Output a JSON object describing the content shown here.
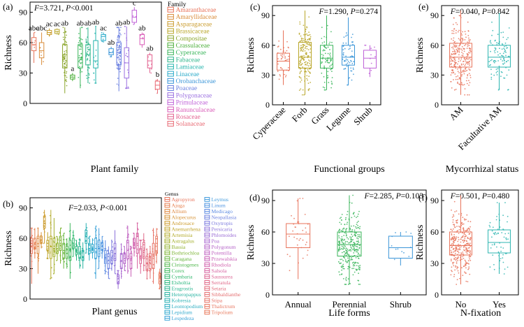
{
  "chart_data": [
    {
      "id": "a",
      "panel_label": "(a)",
      "type": "box",
      "stat_text": {
        "f": "F",
        "f_val": "=3.721, ",
        "p": "P",
        "p_val": "<0.001"
      },
      "ylabel": "Richness",
      "xlabel": "Plant family",
      "ylim": [
        0,
        100
      ],
      "yticks": [
        0,
        30,
        60,
        90
      ],
      "legend_title": "Family",
      "categories": [
        "Amaranthaceae",
        "Amaryllidaceae",
        "Asparagaceae",
        "Brassicaceae",
        "Compositae",
        "Crassulaceae",
        "Cyperaceae",
        "Fabaceae",
        "Lamiaceae",
        "Linaceae",
        "Orobanchaceae",
        "Poaceae",
        "Polygonaceae",
        "Primulaceae",
        "Ranunculaceae",
        "Rosaceae",
        "Solanaceae"
      ],
      "colors": [
        "#e8735a",
        "#d98c3a",
        "#c99a2a",
        "#b8a527",
        "#8aa52a",
        "#4caf3a",
        "#3ab55a",
        "#2cb58a",
        "#25b4ad",
        "#27a9c8",
        "#3a95d8",
        "#6a7fe0",
        "#9a6fe0",
        "#c063d8",
        "#d95cb8",
        "#e2608e",
        "#e86a74"
      ],
      "boxes": [
        {
          "q1": 52,
          "med": 58,
          "q3": 65,
          "lo": 40,
          "hi": 70,
          "n": 6
        },
        {
          "q1": 45,
          "med": 52,
          "q3": 60,
          "lo": 38,
          "hi": 70,
          "n": 5
        },
        {
          "q1": 68,
          "med": 70,
          "q3": 72,
          "lo": 66,
          "hi": 74,
          "n": 2
        },
        {
          "q1": 69,
          "med": 71,
          "q3": 73,
          "lo": 68,
          "hi": 74,
          "n": 2
        },
        {
          "q1": 35,
          "med": 48,
          "q3": 58,
          "lo": 10,
          "hi": 75,
          "n": 60
        },
        {
          "q1": 24,
          "med": 26,
          "q3": 28,
          "lo": 22,
          "hi": 30,
          "n": 3
        },
        {
          "q1": 35,
          "med": 45,
          "q3": 58,
          "lo": 15,
          "hi": 75,
          "n": 40
        },
        {
          "q1": 38,
          "med": 48,
          "q3": 58,
          "lo": 20,
          "hi": 75,
          "n": 40
        },
        {
          "q1": 35,
          "med": 42,
          "q3": 62,
          "lo": 20,
          "hi": 76,
          "n": 12
        },
        {
          "q1": 62,
          "med": 66,
          "q3": 68,
          "lo": 60,
          "hi": 70,
          "n": 4
        },
        {
          "q1": 48,
          "med": 50,
          "q3": 54,
          "lo": 46,
          "hi": 56,
          "n": 4
        },
        {
          "q1": 38,
          "med": 50,
          "q3": 60,
          "lo": 12,
          "hi": 75,
          "n": 80
        },
        {
          "q1": 25,
          "med": 40,
          "q3": 55,
          "lo": 15,
          "hi": 76,
          "n": 20
        },
        {
          "q1": 80,
          "med": 85,
          "q3": 92,
          "lo": 78,
          "hi": 95,
          "n": 3
        },
        {
          "q1": 58,
          "med": 64,
          "q3": 68,
          "lo": 55,
          "hi": 70,
          "n": 4
        },
        {
          "q1": 35,
          "med": 42,
          "q3": 48,
          "lo": 30,
          "hi": 50,
          "n": 5
        },
        {
          "q1": 14,
          "med": 18,
          "q3": 22,
          "lo": 10,
          "hi": 24,
          "n": 3
        }
      ],
      "sig_letters": [
        "abc",
        "abc",
        "ac",
        "ac",
        "ab",
        "a",
        "ab",
        "ab",
        "ab",
        "ac",
        "ab",
        "ab",
        "ab",
        "c",
        "ab",
        "ab",
        "b"
      ]
    },
    {
      "id": "b",
      "panel_label": "(b)",
      "type": "box",
      "stat_text": {
        "f": "F",
        "f_val": "=2.033, ",
        "p": "P",
        "p_val": "<0.001"
      },
      "ylabel": "Richness",
      "xlabel": "Plant genus",
      "ylim": [
        0,
        100
      ],
      "yticks": [
        0,
        30,
        60,
        90
      ],
      "legend_title": "Genus",
      "categories": [
        "Agropyron",
        "Ajuga",
        "Allium",
        "Alopecurus",
        "Androsace",
        "Anemarrhena",
        "Artemisia",
        "Astragalus",
        "Bassia",
        "Bothriochloa",
        "Caragana",
        "Cleistogenes",
        "Corex",
        "Cymbaria",
        "Elsholtia",
        "Eragrostis",
        "Heteropappus",
        "Kobresia",
        "Leontopodium",
        "Lepidium",
        "Lespedeza",
        "Leymus",
        "Linum",
        "Medicago",
        "Neopallasia",
        "Oxytropis",
        "Persicaria",
        "Phlomoides",
        "Poa",
        "Polygonum",
        "Potentilla",
        "Przewalskia",
        "Rhodiola",
        "Salsola",
        "Saussurea",
        "Serratula",
        "Setaria",
        "Sibbaldianthe",
        "Stipa",
        "Thalictrum",
        "Tripolium"
      ],
      "colors": [
        "#e8735a",
        "#e57d4c",
        "#de8840",
        "#d69336",
        "#cc9c2e",
        "#c0a42a",
        "#b2aa28",
        "#a2ae28",
        "#90b12c",
        "#7cb333",
        "#66b53d",
        "#4fb64a",
        "#3ab75a",
        "#2eb76b",
        "#29b67d",
        "#27b58f",
        "#27b3a1",
        "#28b0b2",
        "#2badc1",
        "#30a8cd",
        "#37a2d7",
        "#419bdd",
        "#4d93e0",
        "#5b8ae1",
        "#6b81e0",
        "#7b79de",
        "#8b72da",
        "#9a6cd5",
        "#a867cf",
        "#b463c8",
        "#bf60c0",
        "#c85eb6",
        "#d05eab",
        "#d6609f",
        "#db6392",
        "#df6686",
        "#e26a7a",
        "#e46e70",
        "#e67266",
        "#e7755f",
        "#e8785a"
      ],
      "boxes": [
        {
          "q1": 45,
          "med": 55,
          "q3": 60,
          "lo": 15,
          "hi": 70
        },
        {
          "q1": 50,
          "med": 55,
          "q3": 60,
          "lo": 40,
          "hi": 70
        },
        {
          "q1": 45,
          "med": 52,
          "q3": 62,
          "lo": 25,
          "hi": 70
        },
        {
          "q1": 55,
          "med": 58,
          "q3": 62,
          "lo": 50,
          "hi": 66
        },
        {
          "q1": 70,
          "med": 75,
          "q3": 82,
          "lo": 55,
          "hi": 88
        },
        {
          "q1": 48,
          "med": 52,
          "q3": 58,
          "lo": 40,
          "hi": 66
        },
        {
          "q1": 40,
          "med": 52,
          "q3": 62,
          "lo": 20,
          "hi": 88
        },
        {
          "q1": 42,
          "med": 50,
          "q3": 60,
          "lo": 25,
          "hi": 80
        },
        {
          "q1": 45,
          "med": 50,
          "q3": 55,
          "lo": 38,
          "hi": 62
        },
        {
          "q1": 48,
          "med": 55,
          "q3": 62,
          "lo": 35,
          "hi": 70
        },
        {
          "q1": 40,
          "med": 48,
          "q3": 55,
          "lo": 30,
          "hi": 65
        },
        {
          "q1": 40,
          "med": 45,
          "q3": 52,
          "lo": 30,
          "hi": 60
        },
        {
          "q1": 38,
          "med": 48,
          "q3": 58,
          "lo": 20,
          "hi": 75
        },
        {
          "q1": 50,
          "med": 55,
          "q3": 60,
          "lo": 42,
          "hi": 68
        },
        {
          "q1": 44,
          "med": 48,
          "q3": 52,
          "lo": 38,
          "hi": 58
        },
        {
          "q1": 40,
          "med": 46,
          "q3": 52,
          "lo": 30,
          "hi": 60
        },
        {
          "q1": 38,
          "med": 42,
          "q3": 48,
          "lo": 30,
          "hi": 56
        },
        {
          "q1": 55,
          "med": 62,
          "q3": 68,
          "lo": 45,
          "hi": 75
        },
        {
          "q1": 45,
          "med": 50,
          "q3": 55,
          "lo": 38,
          "hi": 62
        },
        {
          "q1": 46,
          "med": 50,
          "q3": 54,
          "lo": 40,
          "hi": 60
        },
        {
          "q1": 40,
          "med": 50,
          "q3": 60,
          "lo": 20,
          "hi": 72
        },
        {
          "q1": 42,
          "med": 50,
          "q3": 58,
          "lo": 30,
          "hi": 70
        },
        {
          "q1": 48,
          "med": 52,
          "q3": 56,
          "lo": 40,
          "hi": 62
        },
        {
          "q1": 35,
          "med": 40,
          "q3": 48,
          "lo": 25,
          "hi": 58
        },
        {
          "q1": 30,
          "med": 38,
          "q3": 45,
          "lo": 20,
          "hi": 52
        },
        {
          "q1": 35,
          "med": 40,
          "q3": 48,
          "lo": 28,
          "hi": 58
        },
        {
          "q1": 38,
          "med": 45,
          "q3": 55,
          "lo": 25,
          "hi": 68
        },
        {
          "q1": 15,
          "med": 20,
          "q3": 24,
          "lo": 10,
          "hi": 28
        },
        {
          "q1": 30,
          "med": 38,
          "q3": 45,
          "lo": 20,
          "hi": 55
        },
        {
          "q1": 35,
          "med": 40,
          "q3": 45,
          "lo": 28,
          "hi": 52
        },
        {
          "q1": 40,
          "med": 48,
          "q3": 58,
          "lo": 25,
          "hi": 72
        },
        {
          "q1": 30,
          "med": 38,
          "q3": 45,
          "lo": 22,
          "hi": 52
        },
        {
          "q1": 50,
          "med": 55,
          "q3": 60,
          "lo": 42,
          "hi": 65
        },
        {
          "q1": 45,
          "med": 55,
          "q3": 65,
          "lo": 30,
          "hi": 75
        },
        {
          "q1": 35,
          "med": 42,
          "q3": 50,
          "lo": 25,
          "hi": 58
        },
        {
          "q1": 40,
          "med": 48,
          "q3": 56,
          "lo": 28,
          "hi": 65
        },
        {
          "q1": 28,
          "med": 35,
          "q3": 42,
          "lo": 20,
          "hi": 50
        },
        {
          "q1": 30,
          "med": 38,
          "q3": 45,
          "lo": 20,
          "hi": 52
        },
        {
          "q1": 30,
          "med": 40,
          "q3": 55,
          "lo": 15,
          "hi": 70
        },
        {
          "q1": 45,
          "med": 55,
          "q3": 62,
          "lo": 35,
          "hi": 70
        },
        {
          "q1": 15,
          "med": 20,
          "q3": 25,
          "lo": 10,
          "hi": 30
        }
      ]
    },
    {
      "id": "c",
      "panel_label": "(c)",
      "type": "box",
      "stat_text": {
        "f": "F",
        "f_val": "=1.290, ",
        "p": "P",
        "p_val": "=0.274"
      },
      "ylabel": "Richness",
      "xlabel": "Functional groups",
      "ylim": [
        0,
        100
      ],
      "yticks": [
        0,
        30,
        60,
        90
      ],
      "categories": [
        "Cyperaceae",
        "Forb",
        "Grass",
        "Legume",
        "Shrub"
      ],
      "colors": [
        "#e8735a",
        "#b8a527",
        "#3ab55a",
        "#3a95d8",
        "#c063d8"
      ],
      "boxes": [
        {
          "q1": 35,
          "med": 44,
          "q3": 52,
          "lo": 20,
          "hi": 75,
          "n": 45
        },
        {
          "q1": 37,
          "med": 48,
          "q3": 63,
          "lo": 10,
          "hi": 95,
          "n": 160
        },
        {
          "q1": 37,
          "med": 47,
          "q3": 60,
          "lo": 15,
          "hi": 90,
          "n": 80
        },
        {
          "q1": 40,
          "med": 48,
          "q3": 60,
          "lo": 20,
          "hi": 88,
          "n": 60
        },
        {
          "q1": 37,
          "med": 47,
          "q3": 55,
          "lo": 28,
          "hi": 60,
          "n": 10
        }
      ]
    },
    {
      "id": "e",
      "panel_label": "(e)",
      "type": "box",
      "stat_text": {
        "f": "F",
        "f_val": "=0.040, ",
        "p": "P",
        "p_val": "=0.842"
      },
      "ylabel": "Richness",
      "xlabel": "Mycorrhizal status",
      "ylim": [
        0,
        100
      ],
      "yticks": [
        0,
        30,
        60,
        90
      ],
      "categories": [
        "AM",
        "Facultative AM"
      ],
      "colors": [
        "#e8735a",
        "#2cb5b0"
      ],
      "boxes": [
        {
          "q1": 38,
          "med": 48,
          "q3": 62,
          "lo": 10,
          "hi": 95,
          "n": 260
        },
        {
          "q1": 38,
          "med": 48,
          "q3": 60,
          "lo": 15,
          "hi": 92,
          "n": 100
        }
      ]
    },
    {
      "id": "d",
      "panel_label": "(d)",
      "type": "box",
      "stat_text": {
        "f": "F",
        "f_val": "=2.285, ",
        "p": "P",
        "p_val": "=0.103"
      },
      "ylabel": "Richness",
      "xlabel": "Life forms",
      "ylim": [
        0,
        100
      ],
      "yticks": [
        0,
        30,
        60,
        90
      ],
      "categories": [
        "Annual",
        "Perennial",
        "Shrub"
      ],
      "colors": [
        "#e8735a",
        "#3ab55a",
        "#3a95d8"
      ],
      "boxes": [
        {
          "q1": 45,
          "med": 58,
          "q3": 68,
          "lo": 15,
          "hi": 92,
          "n": 35
        },
        {
          "q1": 37,
          "med": 48,
          "q3": 60,
          "lo": 10,
          "hi": 95,
          "n": 300
        },
        {
          "q1": 35,
          "med": 45,
          "q3": 56,
          "lo": 28,
          "hi": 60,
          "n": 12
        }
      ]
    },
    {
      "id": "f",
      "panel_label": "(f)",
      "type": "box",
      "stat_text": {
        "f": "F",
        "f_val": "=0.501, ",
        "p": "P",
        "p_val": "=0.480"
      },
      "ylabel": "Richness",
      "xlabel": "N-fixation",
      "ylim": [
        0,
        100
      ],
      "yticks": [
        0,
        30,
        60,
        90
      ],
      "categories": [
        "No",
        "Yes"
      ],
      "colors": [
        "#e8735a",
        "#2cb5b0"
      ],
      "boxes": [
        {
          "q1": 38,
          "med": 47,
          "q3": 60,
          "lo": 10,
          "hi": 95,
          "n": 300
        },
        {
          "q1": 40,
          "med": 50,
          "q3": 62,
          "lo": 20,
          "hi": 88,
          "n": 60
        }
      ]
    }
  ]
}
